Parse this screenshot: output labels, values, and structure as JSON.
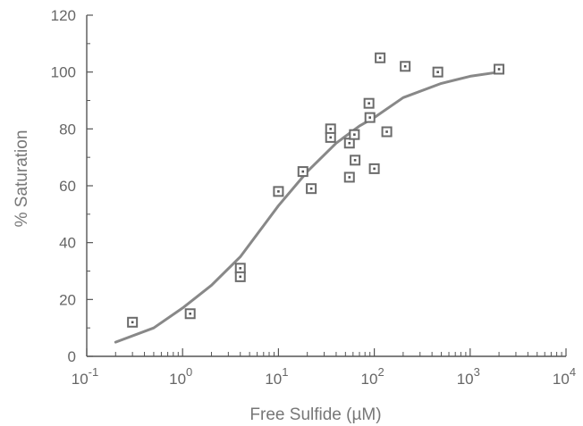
{
  "chart_data": {
    "type": "scatter",
    "title": "",
    "xlabel": "Free Sulfide (µM)",
    "ylabel": "% Saturation",
    "xscale": "log",
    "xlim": [
      0.1,
      10000
    ],
    "ylim": [
      0,
      120
    ],
    "x_ticks": [
      {
        "value": 0.1,
        "base": "10",
        "exp": "-1"
      },
      {
        "value": 1,
        "base": "10",
        "exp": "0"
      },
      {
        "value": 10,
        "base": "10",
        "exp": "1"
      },
      {
        "value": 100,
        "base": "10",
        "exp": "2"
      },
      {
        "value": 1000,
        "base": "10",
        "exp": "3"
      },
      {
        "value": 10000,
        "base": "10",
        "exp": "4"
      }
    ],
    "y_ticks": [
      0,
      20,
      40,
      60,
      80,
      100,
      120
    ],
    "grid": false,
    "points": [
      {
        "x": 0.3,
        "y": 12
      },
      {
        "x": 1.2,
        "y": 15
      },
      {
        "x": 4.0,
        "y": 31
      },
      {
        "x": 4.0,
        "y": 28
      },
      {
        "x": 10,
        "y": 58
      },
      {
        "x": 18,
        "y": 65
      },
      {
        "x": 22,
        "y": 59
      },
      {
        "x": 35,
        "y": 80
      },
      {
        "x": 35,
        "y": 77
      },
      {
        "x": 55,
        "y": 75
      },
      {
        "x": 55,
        "y": 63
      },
      {
        "x": 62,
        "y": 78
      },
      {
        "x": 63,
        "y": 69
      },
      {
        "x": 88,
        "y": 89
      },
      {
        "x": 90,
        "y": 84
      },
      {
        "x": 100,
        "y": 66
      },
      {
        "x": 115,
        "y": 105
      },
      {
        "x": 135,
        "y": 79
      },
      {
        "x": 210,
        "y": 102
      },
      {
        "x": 460,
        "y": 100
      },
      {
        "x": 2000,
        "y": 101
      }
    ],
    "fit_curve": [
      {
        "x": 0.2,
        "y": 5
      },
      {
        "x": 0.5,
        "y": 10
      },
      {
        "x": 1,
        "y": 17
      },
      {
        "x": 2,
        "y": 25
      },
      {
        "x": 4,
        "y": 35
      },
      {
        "x": 7,
        "y": 46
      },
      {
        "x": 10,
        "y": 53
      },
      {
        "x": 20,
        "y": 65
      },
      {
        "x": 40,
        "y": 75
      },
      {
        "x": 70,
        "y": 81
      },
      {
        "x": 100,
        "y": 84
      },
      {
        "x": 200,
        "y": 91
      },
      {
        "x": 500,
        "y": 96
      },
      {
        "x": 1000,
        "y": 98.5
      },
      {
        "x": 2000,
        "y": 100
      }
    ],
    "colors": {
      "axis": "#555555",
      "curve": "#888888",
      "marker": "#6b6b6b"
    }
  }
}
